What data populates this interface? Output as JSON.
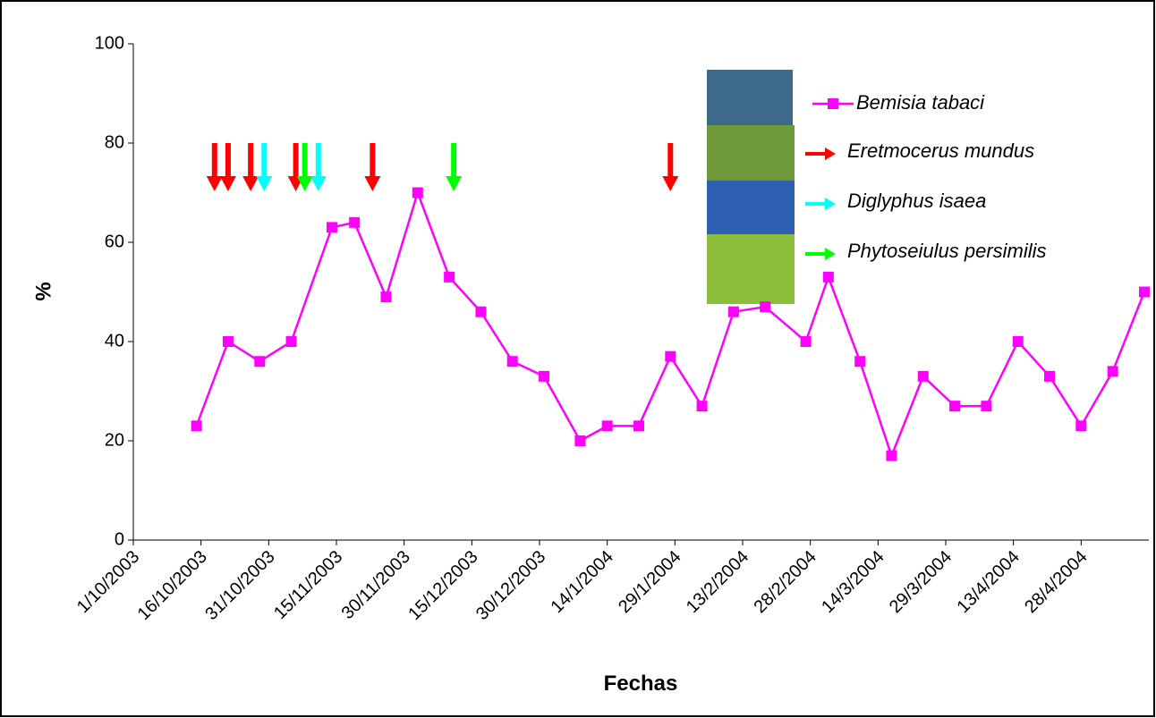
{
  "chart_data": {
    "type": "line",
    "y_label": "%",
    "x_label": "Fechas",
    "xlim": [
      "1/10/2003",
      "13/5/2004"
    ],
    "xticks": [
      "1/10/2003",
      "16/10/2003",
      "31/10/2003",
      "15/11/2003",
      "30/11/2003",
      "15/12/2003",
      "30/12/2003",
      "14/1/2004",
      "29/1/2004",
      "13/2/2004",
      "28/2/2004",
      "14/3/2004",
      "29/3/2004",
      "13/4/2004",
      "28/4/2004"
    ],
    "ylim": [
      0,
      100
    ],
    "yticks": [
      0,
      20,
      40,
      60,
      80,
      100
    ],
    "grid": false,
    "legend": "upper right",
    "series": [
      {
        "name": "Bemisia tabaci",
        "color": "#ff00ff",
        "x": [
          "15/10/2003",
          "22/10/2003",
          "29/10/2003",
          "5/11/2003",
          "14/11/2003",
          "19/11/2003",
          "26/11/2003",
          "3/12/2003",
          "10/12/2003",
          "17/12/2003",
          "24/12/2003",
          "31/12/2003",
          "8/1/2004",
          "14/1/2004",
          "21/1/2004",
          "28/1/2004",
          "4/2/2004",
          "11/2/2004",
          "18/2/2004",
          "27/2/2004",
          "3/3/2004",
          "10/3/2004",
          "17/3/2004",
          "24/3/2004",
          "31/3/2004",
          "7/4/2004",
          "14/4/2004",
          "21/4/2004",
          "28/4/2004",
          "5/5/2004",
          "12/5/2004"
        ],
        "values": [
          23,
          40,
          36,
          40,
          63,
          64,
          49,
          70,
          53,
          46,
          36,
          33,
          20,
          23,
          23,
          37,
          27,
          46,
          47,
          40,
          53,
          36,
          17,
          33,
          27,
          27,
          40,
          33,
          23,
          34,
          50
        ]
      }
    ],
    "releases": [
      {
        "name": "Eretmocerus mundus",
        "color": "#ff0000",
        "x": [
          "19/10/2003",
          "22/10/2003",
          "27/10/2003",
          "6/11/2003",
          "23/11/2003",
          "28/1/2004"
        ]
      },
      {
        "name": "Diglyphus isaea",
        "color": "#00ffff",
        "x": [
          "30/10/2003",
          "11/11/2003"
        ]
      },
      {
        "name": "Phytoseiulus persimilis",
        "color": "#00ff00",
        "x": [
          "8/11/2003",
          "11/12/2003"
        ]
      }
    ]
  }
}
